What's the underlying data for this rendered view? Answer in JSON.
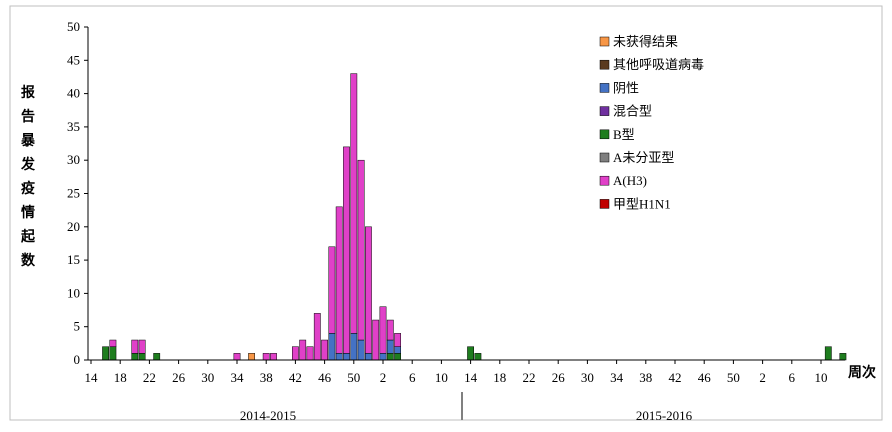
{
  "chart_data": {
    "type": "bar",
    "stacked": true,
    "title": "",
    "ylabel": "报告暴发疫情起数",
    "xlabel": "周次",
    "ylim": [
      0,
      50
    ],
    "y_ticks": [
      0,
      5,
      10,
      15,
      20,
      25,
      30,
      35,
      40,
      45,
      50
    ],
    "x_tick_labels": [
      "14",
      "18",
      "22",
      "26",
      "30",
      "34",
      "38",
      "42",
      "46",
      "50",
      "2",
      "6",
      "10",
      "14",
      "18",
      "22",
      "26",
      "30",
      "34",
      "38",
      "42",
      "46",
      "50",
      "2",
      "6",
      "10"
    ],
    "seasons": [
      "2014-2015",
      "2015-2016"
    ],
    "legend_position": "top-right",
    "colors": {
      "not_obtained": "#F79646",
      "other_virus": "#5A3A1E",
      "negative": "#4472C4",
      "mixed": "#7030A0",
      "b": "#1E7D1E",
      "a_unsubtyped": "#7F7F7F",
      "h3": "#E040C8",
      "h1n1": "#C00000"
    },
    "legend": [
      {
        "name": "未获得结果",
        "color": "#F79646",
        "key": "not_obtained"
      },
      {
        "name": "其他呼吸道病毒",
        "color": "#5A3A1E",
        "key": "other_virus"
      },
      {
        "name": "阴性",
        "color": "#4472C4",
        "key": "negative"
      },
      {
        "name": "混合型",
        "color": "#7030A0",
        "key": "mixed"
      },
      {
        "name": "B型",
        "color": "#1E7D1E",
        "key": "b"
      },
      {
        "name": "A未分亚型",
        "color": "#7F7F7F",
        "key": "a_unsubtyped"
      },
      {
        "name": "A(H3)",
        "color": "#E040C8",
        "key": "h3"
      },
      {
        "name": "甲型H1N1",
        "color": "#C00000",
        "key": "h1n1"
      }
    ],
    "stack_order": [
      "b",
      "negative",
      "mixed",
      "h3",
      "not_obtained"
    ],
    "bars": [
      {
        "week": "16",
        "b": 2
      },
      {
        "week": "17",
        "b": 2,
        "h3": 1
      },
      {
        "week": "20",
        "b": 1,
        "h3": 2
      },
      {
        "week": "21",
        "b": 1,
        "h3": 2
      },
      {
        "week": "23",
        "b": 1
      },
      {
        "week": "34",
        "h3": 1
      },
      {
        "week": "36",
        "not_obtained": 1
      },
      {
        "week": "38",
        "h3": 1
      },
      {
        "week": "39",
        "h3": 1
      },
      {
        "week": "42",
        "h3": 2
      },
      {
        "week": "43",
        "h3": 3
      },
      {
        "week": "44",
        "h3": 2
      },
      {
        "week": "45",
        "h3": 7
      },
      {
        "week": "46",
        "h3": 3
      },
      {
        "week": "47",
        "negative": 4,
        "h3": 13
      },
      {
        "week": "48",
        "negative": 1,
        "h3": 22
      },
      {
        "week": "49",
        "negative": 1,
        "h3": 31
      },
      {
        "week": "50",
        "negative": 4,
        "h3": 39
      },
      {
        "week": "51",
        "negative": 3,
        "h3": 27
      },
      {
        "week": "52",
        "negative": 1,
        "h3": 19
      },
      {
        "week": "1",
        "h3": 6
      },
      {
        "week": "2",
        "negative": 1,
        "h3": 7
      },
      {
        "week": "3",
        "b": 1,
        "negative": 2,
        "h3": 3
      },
      {
        "week": "4",
        "b": 1,
        "negative": 1,
        "h3": 2
      },
      {
        "week": "11",
        "b": 2
      },
      {
        "week": "13",
        "b": 1
      },
      {
        "week": "14",
        "b": 2
      },
      {
        "week": "15",
        "b": 1
      }
    ]
  }
}
